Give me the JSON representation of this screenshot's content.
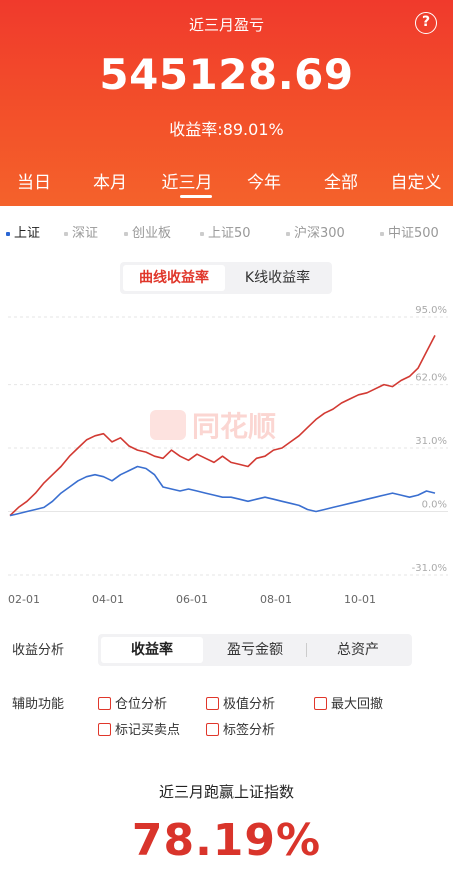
{
  "header": {
    "title": "近三月盈亏",
    "help_icon": "?",
    "amount": "545128.69",
    "rate_text": "收益率:89.01%",
    "tabs": [
      "当日",
      "本月",
      "近三月",
      "今年",
      "全部",
      "自定义"
    ],
    "active_tab": "近三月"
  },
  "index_tabs": {
    "items": [
      "上证",
      "深证",
      "创业板",
      "上证50",
      "沪深300",
      "中证500"
    ],
    "active": "上证"
  },
  "chart_mode": {
    "options": [
      "曲线收益率",
      "K线收益率"
    ],
    "active": "曲线收益率"
  },
  "watermark": "同花顺",
  "chart_data": {
    "type": "line",
    "y_tick_labels": [
      "95.0%",
      "62.0%",
      "31.0%",
      "0.0%",
      "-31.0%"
    ],
    "y_ticks": [
      95.0,
      62.0,
      31.0,
      0.0,
      -31.0
    ],
    "x_tick_labels": [
      "02-01",
      "04-01",
      "06-01",
      "08-01",
      "10-01"
    ],
    "ylim": [
      -31.0,
      95.0
    ],
    "series": [
      {
        "color": "#d23a33",
        "x": [
          0,
          2,
          4,
          6,
          8,
          10,
          12,
          14,
          16,
          18,
          20,
          22,
          24,
          26,
          28,
          30,
          32,
          34,
          36,
          38,
          40,
          42,
          44,
          46,
          48,
          50,
          52,
          54,
          56,
          58,
          60,
          62,
          64,
          66,
          68,
          70,
          72,
          74,
          76,
          78,
          80,
          82,
          84,
          86,
          88,
          90,
          92,
          94,
          96,
          98,
          100
        ],
        "values": [
          -2,
          2,
          5,
          9,
          14,
          18,
          22,
          27,
          31,
          35,
          37,
          38,
          34,
          36,
          32,
          30,
          29,
          27,
          26,
          30,
          27,
          25,
          28,
          26,
          24,
          27,
          24,
          23,
          22,
          26,
          27,
          30,
          31,
          34,
          37,
          41,
          45,
          48,
          50,
          53,
          55,
          57,
          58,
          60,
          62,
          61,
          64,
          66,
          70,
          78,
          86
        ]
      },
      {
        "color": "#3a6fd0",
        "x": [
          0,
          2,
          4,
          6,
          8,
          10,
          12,
          14,
          16,
          18,
          20,
          22,
          24,
          26,
          28,
          30,
          32,
          34,
          36,
          38,
          40,
          42,
          44,
          46,
          48,
          50,
          52,
          54,
          56,
          58,
          60,
          62,
          64,
          66,
          68,
          70,
          72,
          74,
          76,
          78,
          80,
          82,
          84,
          86,
          88,
          90,
          92,
          94,
          96,
          98,
          100
        ],
        "values": [
          -2,
          -1,
          0,
          1,
          2,
          5,
          9,
          12,
          15,
          17,
          18,
          17,
          15,
          18,
          20,
          22,
          21,
          18,
          12,
          11,
          10,
          11,
          10,
          9,
          8,
          7,
          7,
          6,
          5,
          6,
          7,
          6,
          5,
          4,
          3,
          1,
          0,
          1,
          2,
          3,
          4,
          5,
          6,
          7,
          8,
          9,
          8,
          7,
          8,
          10,
          9
        ]
      }
    ]
  },
  "analysis": {
    "label": "收益分析",
    "options": [
      "收益率",
      "盈亏金额",
      "总资产"
    ],
    "active": "收益率"
  },
  "aux": {
    "label": "辅助功能",
    "checkboxes": [
      "仓位分析",
      "极值分析",
      "最大回撤",
      "标记买卖点",
      "标签分析"
    ]
  },
  "beat": {
    "title": "近三月跑赢上证指数",
    "value": "78.19%"
  }
}
